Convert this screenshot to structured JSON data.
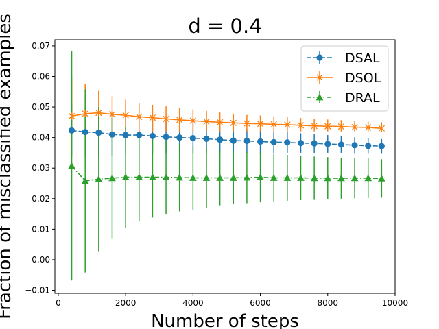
{
  "chart_data": {
    "type": "line",
    "title": "d = 0.4",
    "xlabel": "Number of steps",
    "ylabel": "Fraction of misclassified examples",
    "xlim": [
      -100,
      10000
    ],
    "ylim": [
      -0.011,
      0.072
    ],
    "xticks": [
      0,
      2000,
      4000,
      6000,
      8000,
      10000
    ],
    "xtick_labels": [
      "0",
      "2000",
      "4000",
      "6000",
      "8000",
      "10000"
    ],
    "yticks": [
      -0.01,
      0.0,
      0.01,
      0.02,
      0.03,
      0.04,
      0.05,
      0.06,
      0.07
    ],
    "ytick_labels": [
      "−0.01",
      "0.00",
      "0.01",
      "0.02",
      "0.03",
      "0.04",
      "0.05",
      "0.06",
      "0.07"
    ],
    "grid": false,
    "legend_position": "top-right",
    "x": [
      400,
      800,
      1200,
      1600,
      2000,
      2400,
      2800,
      3200,
      3600,
      4000,
      4400,
      4800,
      5200,
      5600,
      6000,
      6400,
      6800,
      7200,
      7600,
      8000,
      8400,
      8800,
      9200,
      9600
    ],
    "series": [
      {
        "name": "DSAL",
        "color": "#1f77b4",
        "linestyle": "dashed",
        "marker": "circle",
        "values": [
          0.0423,
          0.0418,
          0.0416,
          0.041,
          0.0408,
          0.0408,
          0.0405,
          0.0402,
          0.04,
          0.0398,
          0.0396,
          0.0393,
          0.039,
          0.0389,
          0.0387,
          0.0385,
          0.0384,
          0.0382,
          0.0381,
          0.0379,
          0.0377,
          0.0375,
          0.0373,
          0.0372
        ],
        "err_lower": [
          0.0338,
          0.0335,
          0.0338,
          0.0339,
          0.0345,
          0.0345,
          0.0347,
          0.0349,
          0.0349,
          0.035,
          0.035,
          0.035,
          0.035,
          0.035,
          0.0349,
          0.0349,
          0.035,
          0.035,
          0.035,
          0.035,
          0.035,
          0.0349,
          0.0349,
          0.0349
        ],
        "err_upper": [
          0.051,
          0.05,
          0.0494,
          0.0482,
          0.0471,
          0.0471,
          0.0463,
          0.0455,
          0.0451,
          0.0446,
          0.0442,
          0.0436,
          0.043,
          0.0428,
          0.0425,
          0.0421,
          0.0418,
          0.0414,
          0.0412,
          0.0408,
          0.0404,
          0.0401,
          0.0397,
          0.0395
        ]
      },
      {
        "name": "DSOL",
        "color": "#ff7f0e",
        "linestyle": "solid",
        "marker": "x",
        "values": [
          0.047,
          0.0478,
          0.0481,
          0.0476,
          0.0473,
          0.0468,
          0.0465,
          0.0461,
          0.0458,
          0.0455,
          0.0452,
          0.045,
          0.0448,
          0.0446,
          0.0445,
          0.0443,
          0.0442,
          0.044,
          0.0438,
          0.0437,
          0.0436,
          0.0434,
          0.0433,
          0.043
        ],
        "err_lower": [
          0.042,
          0.042,
          0.042,
          0.042,
          0.042,
          0.042,
          0.042,
          0.042,
          0.042,
          0.042,
          0.042,
          0.042,
          0.042,
          0.042,
          0.042,
          0.042,
          0.042,
          0.042,
          0.042,
          0.042,
          0.042,
          0.042,
          0.042,
          0.042
        ],
        "err_upper": [
          0.06,
          0.0575,
          0.0553,
          0.0535,
          0.0524,
          0.0512,
          0.0507,
          0.0502,
          0.0497,
          0.0492,
          0.0487,
          0.0482,
          0.0478,
          0.0474,
          0.0472,
          0.0469,
          0.0467,
          0.0464,
          0.0461,
          0.0459,
          0.0457,
          0.0454,
          0.0452,
          0.045
        ]
      },
      {
        "name": "DRAL",
        "color": "#2ca02c",
        "linestyle": "dashdot",
        "marker": "triangle",
        "values": [
          0.0307,
          0.0258,
          0.0264,
          0.0267,
          0.027,
          0.027,
          0.027,
          0.027,
          0.0269,
          0.0268,
          0.0268,
          0.0268,
          0.0268,
          0.0269,
          0.027,
          0.0268,
          0.0268,
          0.0268,
          0.0267,
          0.0267,
          0.0267,
          0.0267,
          0.0267,
          0.0266
        ],
        "err_lower": [
          -0.0068,
          -0.0042,
          0.0028,
          0.007,
          0.0105,
          0.0125,
          0.0138,
          0.015,
          0.0158,
          0.0163,
          0.0168,
          0.0178,
          0.0182,
          0.0185,
          0.0188,
          0.0191,
          0.0193,
          0.0195,
          0.0196,
          0.0198,
          0.02,
          0.0201,
          0.0202,
          0.0203
        ],
        "err_upper": [
          0.0683,
          0.0558,
          0.05,
          0.0464,
          0.0435,
          0.0415,
          0.0402,
          0.039,
          0.038,
          0.0373,
          0.0368,
          0.0358,
          0.0354,
          0.0353,
          0.0352,
          0.0345,
          0.0343,
          0.0341,
          0.0338,
          0.0336,
          0.0334,
          0.0333,
          0.0332,
          0.0329
        ]
      }
    ]
  }
}
